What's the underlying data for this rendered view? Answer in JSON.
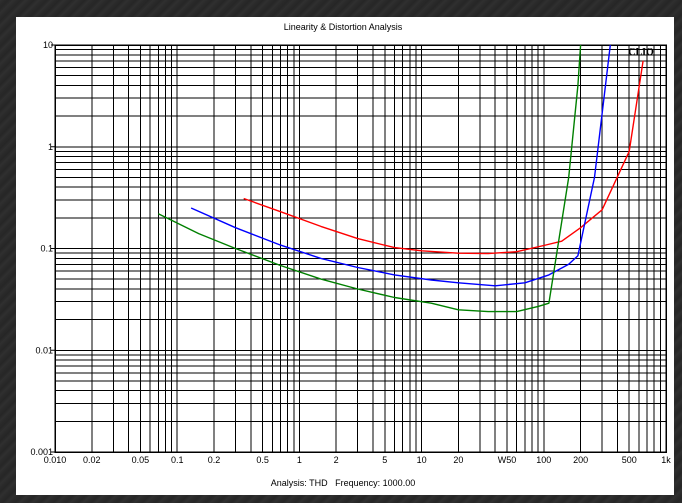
{
  "chart_data": {
    "type": "line",
    "title": "Linearity & Distortion Analysis",
    "footer": "Analysis: THD   Frequency: 1000.00",
    "brand": "CLIO",
    "x_scale": "log",
    "y_scale": "log",
    "xlim": [
      0.01,
      1000
    ],
    "ylim": [
      0.001,
      10
    ],
    "grid": true,
    "x_ticks": [
      {
        "value": 0.01,
        "label": "0.010"
      },
      {
        "value": 0.02,
        "label": "0.02"
      },
      {
        "value": 0.05,
        "label": "0.05"
      },
      {
        "value": 0.1,
        "label": "0.1"
      },
      {
        "value": 0.2,
        "label": "0.2"
      },
      {
        "value": 0.5,
        "label": "0.5"
      },
      {
        "value": 1,
        "label": "1"
      },
      {
        "value": 2,
        "label": "2"
      },
      {
        "value": 5,
        "label": "5"
      },
      {
        "value": 10,
        "label": "10"
      },
      {
        "value": 20,
        "label": "20"
      },
      {
        "value": 50,
        "label": "W50"
      },
      {
        "value": 100,
        "label": "100"
      },
      {
        "value": 200,
        "label": "200"
      },
      {
        "value": 500,
        "label": "500"
      },
      {
        "value": 1000,
        "label": "1k"
      }
    ],
    "y_ticks": [
      {
        "value": 10,
        "label": "10"
      },
      {
        "value": 1,
        "label": "1"
      },
      {
        "value": 0.1,
        "label": "0.1"
      },
      {
        "value": 0.01,
        "label": "0.01"
      },
      {
        "value": 0.001,
        "label": "0.001"
      }
    ],
    "series": [
      {
        "color": "#ff0000",
        "points": [
          [
            0.35,
            0.31
          ],
          [
            0.7,
            0.23
          ],
          [
            1.5,
            0.165
          ],
          [
            3,
            0.125
          ],
          [
            6,
            0.102
          ],
          [
            10,
            0.095
          ],
          [
            20,
            0.09
          ],
          [
            35,
            0.089
          ],
          [
            60,
            0.093
          ],
          [
            100,
            0.107
          ],
          [
            140,
            0.118
          ],
          [
            200,
            0.16
          ],
          [
            300,
            0.24
          ],
          [
            500,
            0.9
          ],
          [
            650,
            7
          ]
        ]
      },
      {
        "color": "#0000ff",
        "points": [
          [
            0.13,
            0.25
          ],
          [
            0.3,
            0.16
          ],
          [
            0.7,
            0.108
          ],
          [
            1.5,
            0.08
          ],
          [
            3,
            0.065
          ],
          [
            6,
            0.055
          ],
          [
            12,
            0.049
          ],
          [
            20,
            0.046
          ],
          [
            40,
            0.043
          ],
          [
            70,
            0.046
          ],
          [
            110,
            0.055
          ],
          [
            160,
            0.07
          ],
          [
            190,
            0.085
          ],
          [
            260,
            0.5
          ],
          [
            350,
            10
          ]
        ]
      },
      {
        "color": "#008000",
        "points": [
          [
            0.07,
            0.22
          ],
          [
            0.15,
            0.14
          ],
          [
            0.3,
            0.1
          ],
          [
            0.7,
            0.068
          ],
          [
            1.5,
            0.05
          ],
          [
            3,
            0.04
          ],
          [
            6,
            0.033
          ],
          [
            12,
            0.029
          ],
          [
            20,
            0.025
          ],
          [
            35,
            0.024
          ],
          [
            60,
            0.024
          ],
          [
            90,
            0.027
          ],
          [
            110,
            0.029
          ],
          [
            160,
            0.5
          ],
          [
            190,
            4
          ],
          [
            200,
            10
          ]
        ]
      }
    ]
  }
}
